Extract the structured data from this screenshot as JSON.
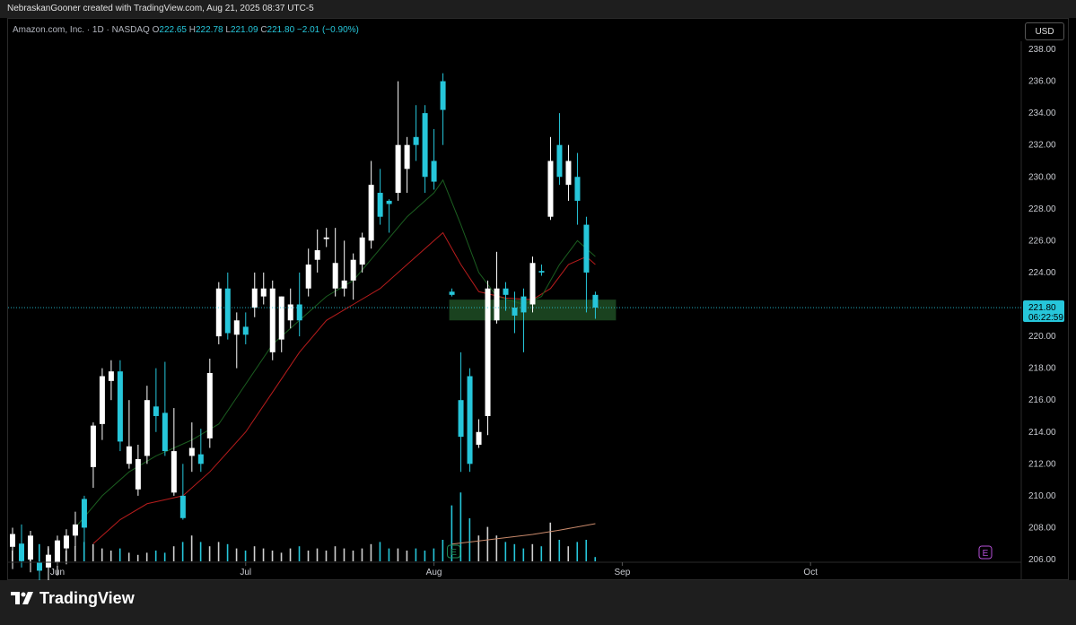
{
  "header": {
    "credit": "NebraskanGooner created with TradingView.com, Aug 21, 2025 08:37 UTC-5"
  },
  "legend": {
    "symbol": "Amazon.com, Inc. · 1D · NASDAQ",
    "open_label": "O",
    "open": "222.65",
    "high_label": "H",
    "high": "222.78",
    "low_label": "L",
    "low": "221.09",
    "close_label": "C",
    "close": "221.80",
    "change": "−2.01 (−0.90%)"
  },
  "currency": "USD",
  "price_badge": {
    "price": "221.80",
    "countdown": "06:22:59"
  },
  "event_markers": {
    "earnings": "E"
  },
  "footer": {
    "brand": "TradingView"
  },
  "colors": {
    "up": "#ffffff",
    "down": "#26c6da",
    "ma_fast": "#1b5e20",
    "ma_slow": "#b71c1c",
    "vol_ma": "#c8896b",
    "zone": "#1f4d24"
  },
  "chart_data": {
    "type": "candlestick",
    "y_ticks": [
      "238.00",
      "236.00",
      "234.00",
      "232.00",
      "230.00",
      "228.00",
      "226.00",
      "224.00",
      "222.00",
      "220.00",
      "218.00",
      "216.00",
      "214.00",
      "212.00",
      "210.00",
      "208.00",
      "206.00"
    ],
    "ylim": [
      206,
      238
    ],
    "x_labels": [
      {
        "label": "Jun",
        "bar": 5
      },
      {
        "label": "Jul",
        "bar": 26
      },
      {
        "label": "Aug",
        "bar": 47
      },
      {
        "label": "Sep",
        "bar": 68
      },
      {
        "label": "Oct",
        "bar": 89
      }
    ],
    "bars_total": 113,
    "candles": [
      [
        0,
        206.8,
        208.0,
        205.4,
        207.6,
        "up"
      ],
      [
        1,
        207.0,
        208.2,
        205.5,
        205.9,
        "down"
      ],
      [
        2,
        206.0,
        207.8,
        205.2,
        207.5,
        "up"
      ],
      [
        3,
        205.8,
        206.8,
        204.6,
        205.3,
        "down"
      ],
      [
        4,
        205.5,
        206.7,
        204.3,
        206.3,
        "up"
      ],
      [
        5,
        205.8,
        207.5,
        205.0,
        207.2,
        "up"
      ],
      [
        6,
        206.7,
        207.9,
        205.7,
        207.5,
        "up"
      ],
      [
        7,
        207.5,
        209.0,
        206.8,
        208.2,
        "up"
      ],
      [
        8,
        208.0,
        210.0,
        207.0,
        209.8,
        "down"
      ],
      [
        9,
        211.8,
        214.6,
        210.5,
        214.4,
        "up"
      ],
      [
        10,
        214.5,
        218.0,
        213.5,
        217.5,
        "up"
      ],
      [
        11,
        217.2,
        218.5,
        216.0,
        217.8,
        "up"
      ],
      [
        12,
        217.8,
        218.5,
        212.8,
        213.4,
        "down"
      ],
      [
        13,
        213.1,
        216.0,
        211.7,
        212.0,
        "up"
      ],
      [
        14,
        212.3,
        213.2,
        210.0,
        210.4,
        "up"
      ],
      [
        15,
        212.5,
        216.9,
        212.0,
        216.0,
        "up"
      ],
      [
        16,
        215.0,
        218.0,
        214.0,
        215.6,
        "down"
      ],
      [
        17,
        215.2,
        218.4,
        212.5,
        212.8,
        "down"
      ],
      [
        18,
        212.8,
        215.5,
        210.0,
        210.2,
        "up"
      ],
      [
        19,
        210.0,
        212.0,
        208.5,
        208.6,
        "down"
      ],
      [
        20,
        212.5,
        214.6,
        211.5,
        213.0,
        "up"
      ],
      [
        21,
        212.6,
        214.2,
        211.5,
        212.0,
        "down"
      ],
      [
        22,
        213.6,
        218.6,
        213.0,
        217.7,
        "up"
      ],
      [
        23,
        220.0,
        223.4,
        219.5,
        223.0,
        "up"
      ],
      [
        24,
        223.0,
        224.0,
        219.8,
        220.2,
        "down"
      ],
      [
        25,
        220.1,
        221.5,
        218.0,
        221.0,
        "up"
      ],
      [
        26,
        220.1,
        221.5,
        219.5,
        220.6,
        "down"
      ],
      [
        27,
        221.8,
        224.0,
        221.2,
        223.0,
        "up"
      ],
      [
        28,
        223.0,
        224.0,
        222.0,
        222.5,
        "up"
      ],
      [
        29,
        223.0,
        223.5,
        218.5,
        219.0,
        "up"
      ],
      [
        30,
        219.8,
        222.5,
        219.0,
        222.5,
        "up"
      ],
      [
        31,
        221.0,
        223.0,
        220.5,
        222.0,
        "up"
      ],
      [
        32,
        222.0,
        224.0,
        220.0,
        221.0,
        "down"
      ],
      [
        33,
        223.0,
        225.5,
        222.5,
        224.5,
        "up"
      ],
      [
        34,
        224.8,
        226.7,
        224.0,
        225.4,
        "up"
      ],
      [
        35,
        226.1,
        226.8,
        225.6,
        226.2,
        "up"
      ],
      [
        36,
        224.6,
        226.8,
        222.5,
        223.0,
        "up"
      ],
      [
        37,
        223.0,
        226.0,
        222.5,
        223.5,
        "up"
      ],
      [
        38,
        223.5,
        225.2,
        222.3,
        224.8,
        "up"
      ],
      [
        39,
        224.5,
        226.5,
        224.0,
        226.2,
        "up"
      ],
      [
        40,
        226.0,
        231.0,
        225.5,
        229.5,
        "up"
      ],
      [
        41,
        229.0,
        230.5,
        227.0,
        227.5,
        "down"
      ],
      [
        42,
        228.3,
        228.6,
        226.5,
        228.5,
        "down"
      ],
      [
        43,
        229.0,
        236.0,
        228.5,
        232.0,
        "up"
      ],
      [
        44,
        230.5,
        232.5,
        229.0,
        232.0,
        "up"
      ],
      [
        45,
        232.0,
        234.5,
        231.0,
        232.5,
        "down"
      ],
      [
        46,
        230.0,
        234.5,
        229.0,
        234.0,
        "down"
      ],
      [
        47,
        231.0,
        233.0,
        229.2,
        229.7,
        "down"
      ],
      [
        48,
        236.0,
        236.5,
        232.0,
        234.2,
        "down"
      ],
      [
        49,
        222.8,
        223.0,
        222.5,
        222.6,
        "down"
      ],
      [
        50,
        216.0,
        219.0,
        211.5,
        213.7,
        "down"
      ],
      [
        51,
        217.5,
        218.0,
        211.5,
        212.0,
        "down"
      ],
      [
        52,
        214.0,
        214.8,
        213.0,
        213.2,
        "up"
      ],
      [
        53,
        215.0,
        223.5,
        213.8,
        223.0,
        "up"
      ],
      [
        54,
        223.0,
        225.3,
        220.8,
        221.0,
        "up"
      ],
      [
        55,
        222.6,
        223.4,
        221.6,
        223.0,
        "down"
      ],
      [
        56,
        221.8,
        222.8,
        220.2,
        221.3,
        "down"
      ],
      [
        57,
        221.5,
        223.0,
        219.0,
        222.5,
        "down"
      ],
      [
        58,
        222.0,
        225.0,
        221.5,
        224.6,
        "up"
      ],
      [
        59,
        224.1,
        224.5,
        223.8,
        224.0,
        "down"
      ],
      [
        60,
        227.5,
        232.5,
        227.3,
        231.0,
        "up"
      ],
      [
        61,
        232.0,
        234.0,
        229.5,
        230.0,
        "down"
      ],
      [
        62,
        231.0,
        232.0,
        228.5,
        229.5,
        "up"
      ],
      [
        63,
        230.0,
        231.5,
        227.0,
        228.5,
        "down"
      ],
      [
        64,
        227.0,
        227.5,
        221.5,
        224.0,
        "down"
      ],
      [
        65,
        222.6,
        222.8,
        221.1,
        221.8,
        "down"
      ]
    ],
    "ma_fast": [
      [
        7,
        208.0
      ],
      [
        10,
        210.0
      ],
      [
        13,
        211.5
      ],
      [
        16,
        212.5
      ],
      [
        20,
        213.5
      ],
      [
        23,
        214.5
      ],
      [
        26,
        217.0
      ],
      [
        29,
        219.5
      ],
      [
        32,
        221.0
      ],
      [
        35,
        222.5
      ],
      [
        38,
        223.5
      ],
      [
        41,
        225.5
      ],
      [
        44,
        227.5
      ],
      [
        47,
        229.0
      ],
      [
        48,
        229.8
      ],
      [
        50,
        227.0
      ],
      [
        52,
        224.0
      ],
      [
        54,
        222.5
      ],
      [
        57,
        222.0
      ],
      [
        59,
        222.5
      ],
      [
        61,
        224.5
      ],
      [
        63,
        226.0
      ],
      [
        65,
        225.0
      ]
    ],
    "ma_slow": [
      [
        9,
        207.0
      ],
      [
        12,
        208.5
      ],
      [
        15,
        209.5
      ],
      [
        19,
        210.0
      ],
      [
        22,
        211.5
      ],
      [
        26,
        214.0
      ],
      [
        29,
        216.5
      ],
      [
        32,
        219.0
      ],
      [
        35,
        221.0
      ],
      [
        38,
        222.0
      ],
      [
        41,
        223.0
      ],
      [
        44,
        224.5
      ],
      [
        47,
        226.0
      ],
      [
        48,
        226.5
      ],
      [
        50,
        224.5
      ],
      [
        52,
        222.8
      ],
      [
        55,
        222.4
      ],
      [
        58,
        222.3
      ],
      [
        60,
        223.0
      ],
      [
        62,
        224.5
      ],
      [
        64,
        225.0
      ],
      [
        65,
        224.5
      ]
    ],
    "volume": [
      [
        0,
        0.5,
        "up"
      ],
      [
        1,
        0.8,
        "down"
      ],
      [
        2,
        0.8,
        "up"
      ],
      [
        3,
        0.8,
        "down"
      ],
      [
        4,
        0.7,
        "up"
      ],
      [
        5,
        0.6,
        "up"
      ],
      [
        6,
        0.5,
        "up"
      ],
      [
        7,
        0.7,
        "up"
      ],
      [
        8,
        0.9,
        "down"
      ],
      [
        9,
        0.8,
        "up"
      ],
      [
        10,
        0.6,
        "up"
      ],
      [
        11,
        0.5,
        "up"
      ],
      [
        12,
        0.6,
        "down"
      ],
      [
        13,
        0.4,
        "up"
      ],
      [
        14,
        0.3,
        "up"
      ],
      [
        15,
        0.4,
        "up"
      ],
      [
        16,
        0.5,
        "down"
      ],
      [
        17,
        0.4,
        "down"
      ],
      [
        18,
        0.7,
        "up"
      ],
      [
        19,
        0.9,
        "down"
      ],
      [
        20,
        1.2,
        "up"
      ],
      [
        21,
        0.9,
        "down"
      ],
      [
        22,
        0.7,
        "up"
      ],
      [
        23,
        0.9,
        "up"
      ],
      [
        24,
        0.8,
        "down"
      ],
      [
        25,
        0.6,
        "up"
      ],
      [
        26,
        0.5,
        "down"
      ],
      [
        27,
        0.7,
        "up"
      ],
      [
        28,
        0.6,
        "up"
      ],
      [
        29,
        0.5,
        "up"
      ],
      [
        30,
        0.4,
        "up"
      ],
      [
        31,
        0.6,
        "up"
      ],
      [
        32,
        0.7,
        "down"
      ],
      [
        33,
        0.5,
        "up"
      ],
      [
        34,
        0.6,
        "up"
      ],
      [
        35,
        0.5,
        "up"
      ],
      [
        36,
        0.7,
        "up"
      ],
      [
        37,
        0.6,
        "up"
      ],
      [
        38,
        0.5,
        "up"
      ],
      [
        39,
        0.6,
        "up"
      ],
      [
        40,
        0.8,
        "up"
      ],
      [
        41,
        0.9,
        "down"
      ],
      [
        42,
        0.6,
        "down"
      ],
      [
        43,
        0.6,
        "up"
      ],
      [
        44,
        0.5,
        "up"
      ],
      [
        45,
        0.6,
        "down"
      ],
      [
        46,
        0.5,
        "down"
      ],
      [
        47,
        0.6,
        "down"
      ],
      [
        48,
        1.0,
        "down"
      ],
      [
        49,
        2.6,
        "down"
      ],
      [
        50,
        3.2,
        "down"
      ],
      [
        51,
        2.0,
        "down"
      ],
      [
        52,
        1.2,
        "up"
      ],
      [
        53,
        1.6,
        "up"
      ],
      [
        54,
        1.2,
        "up"
      ],
      [
        55,
        0.9,
        "down"
      ],
      [
        56,
        0.8,
        "down"
      ],
      [
        57,
        0.6,
        "down"
      ],
      [
        58,
        0.8,
        "up"
      ],
      [
        59,
        0.7,
        "down"
      ],
      [
        60,
        1.8,
        "up"
      ],
      [
        61,
        1.0,
        "down"
      ],
      [
        62,
        0.7,
        "up"
      ],
      [
        63,
        0.9,
        "down"
      ],
      [
        64,
        1.0,
        "down"
      ],
      [
        65,
        0.2,
        "down"
      ]
    ],
    "vol_ma": [
      [
        49,
        0.05
      ],
      [
        52,
        0.2
      ],
      [
        55,
        0.35
      ],
      [
        58,
        0.5
      ],
      [
        61,
        0.7
      ],
      [
        63,
        0.85
      ],
      [
        65,
        1.0
      ]
    ],
    "support_zone": {
      "x_start": 49,
      "x_end": 67,
      "y_low": 221.0,
      "y_high": 222.3
    },
    "current_price": 221.8
  }
}
